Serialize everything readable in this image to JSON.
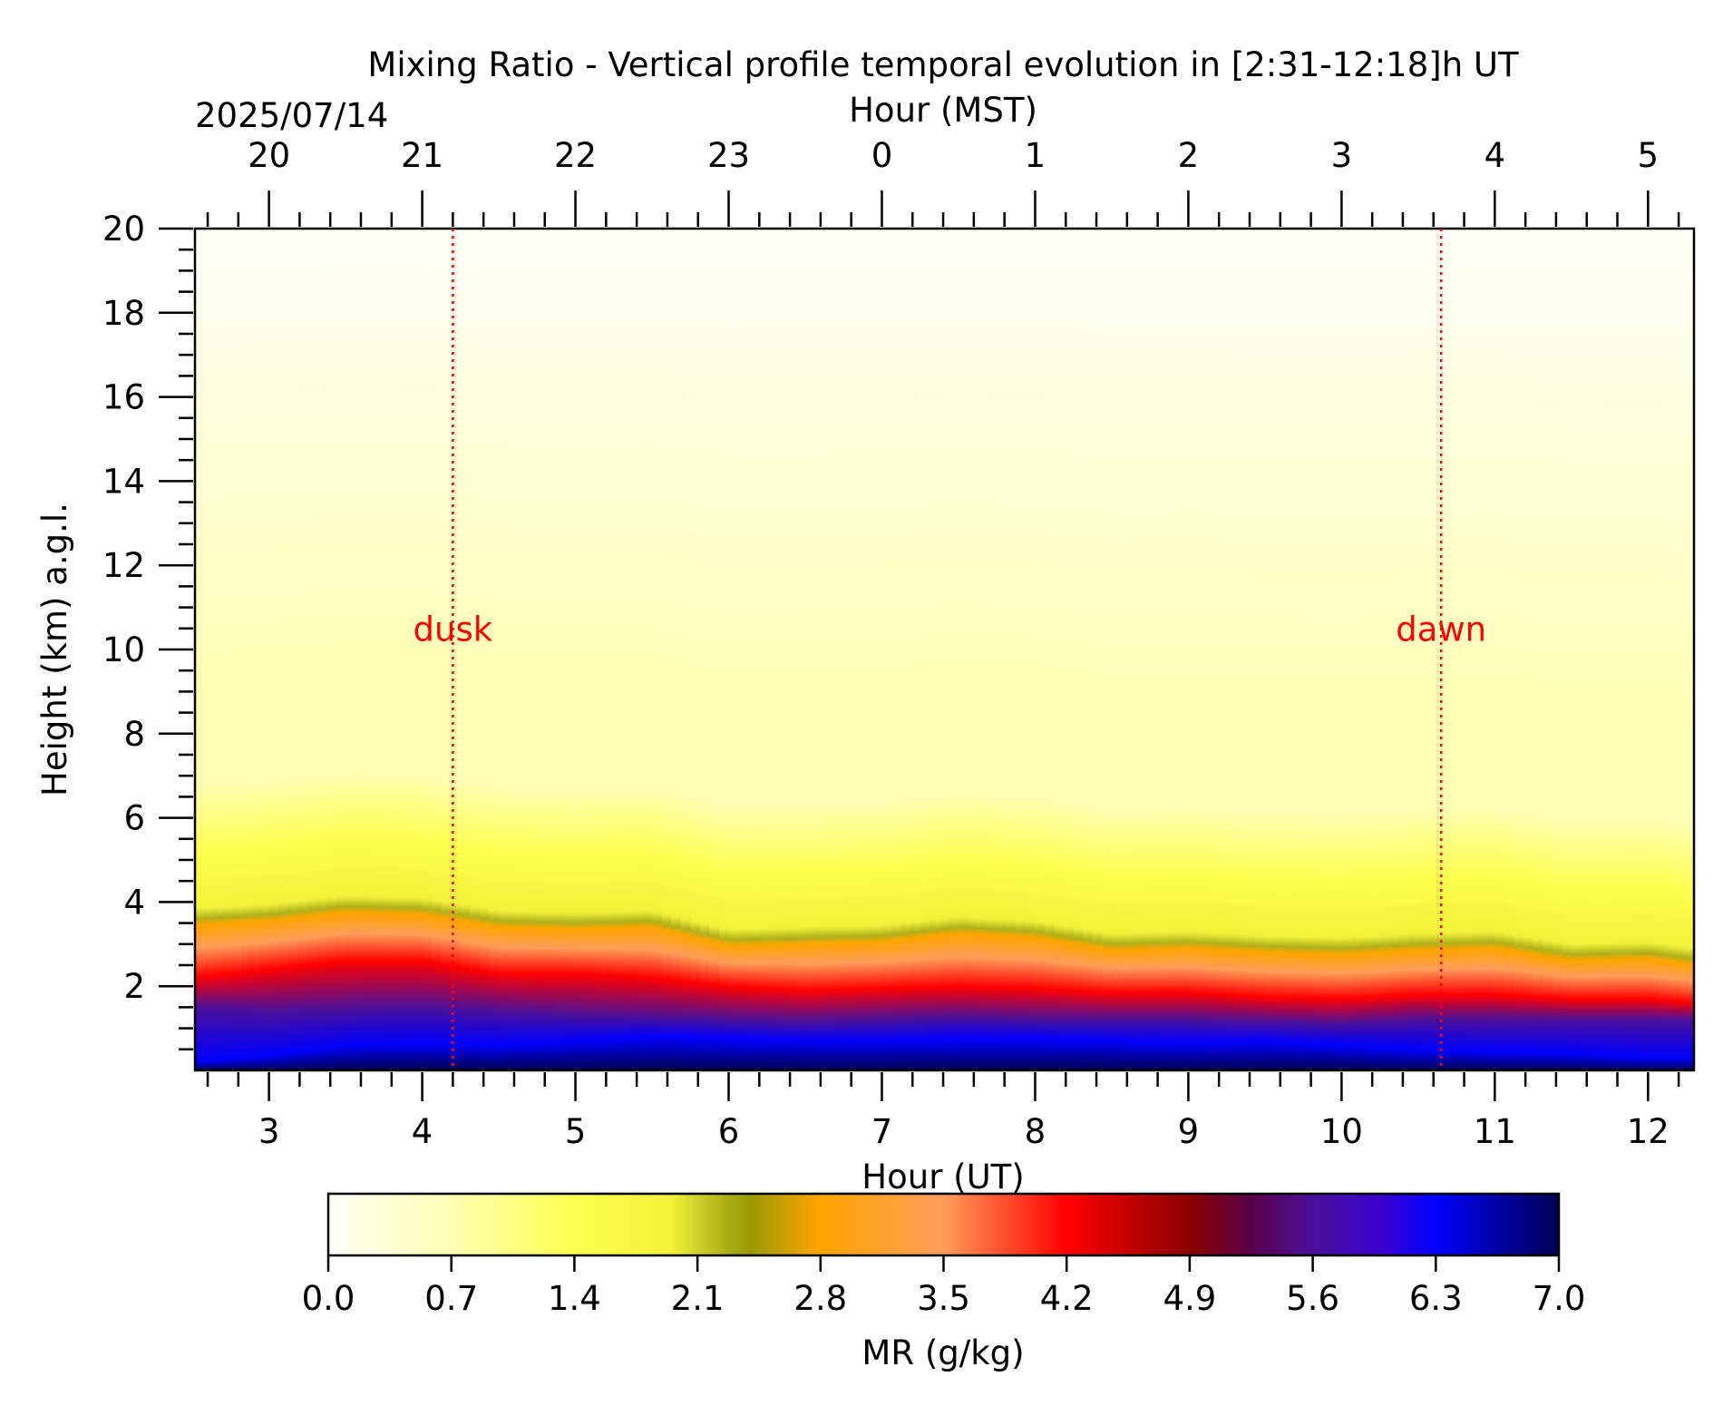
{
  "chart_data": {
    "type": "heatmap",
    "title": "Mixing Ratio - Vertical profile temporal evolution in [2:31-12:18]h UT",
    "date": "2025/07/14",
    "xlabel": "Hour (UT)",
    "x2label": "Hour (MST)",
    "ylabel": "Height (km) a.g.l.",
    "xlim": [
      2.517,
      12.3
    ],
    "ylim": [
      0,
      20
    ],
    "x_ticks": [
      "3",
      "4",
      "5",
      "6",
      "7",
      "8",
      "9",
      "10",
      "11",
      "12"
    ],
    "x_tick_values": [
      3,
      4,
      5,
      6,
      7,
      8,
      9,
      10,
      11,
      12
    ],
    "x2_ticks": [
      "20",
      "21",
      "22",
      "23",
      "0",
      "1",
      "2",
      "3",
      "4",
      "5"
    ],
    "x2_tick_positions_ut": [
      3,
      4,
      5,
      6,
      7,
      8,
      9,
      10,
      11,
      12
    ],
    "y_ticks": [
      "2",
      "4",
      "6",
      "8",
      "10",
      "12",
      "14",
      "16",
      "18",
      "20"
    ],
    "y_tick_values": [
      2,
      4,
      6,
      8,
      10,
      12,
      14,
      16,
      18,
      20
    ],
    "annotations": [
      {
        "label": "dusk",
        "x": 4.2,
        "y": 10.2,
        "color": "#ff0000"
      },
      {
        "label": "dawn",
        "x": 10.65,
        "y": 10.2,
        "color": "#ff0000"
      }
    ],
    "colorbar": {
      "label": "MR (g/kg)",
      "ticks": [
        "0.0",
        "0.7",
        "1.4",
        "2.1",
        "2.8",
        "3.5",
        "4.2",
        "4.9",
        "5.6",
        "6.3",
        "7.0"
      ],
      "range": [
        0,
        7.0
      ],
      "stops": [
        {
          "v": 0.0,
          "c": "#fffff8"
        },
        {
          "v": 0.7,
          "c": "#ffffb4"
        },
        {
          "v": 1.4,
          "c": "#ffff50"
        },
        {
          "v": 1.95,
          "c": "#f2f23a"
        },
        {
          "v": 2.25,
          "c": "#b0b01a"
        },
        {
          "v": 2.4,
          "c": "#9a9a00"
        },
        {
          "v": 2.8,
          "c": "#ffa500"
        },
        {
          "v": 3.5,
          "c": "#ff9c5a"
        },
        {
          "v": 4.2,
          "c": "#ff0000"
        },
        {
          "v": 4.9,
          "c": "#8b0000"
        },
        {
          "v": 5.25,
          "c": "#5a004a"
        },
        {
          "v": 5.6,
          "c": "#4a109a"
        },
        {
          "v": 6.0,
          "c": "#3a00d0"
        },
        {
          "v": 6.3,
          "c": "#0000ff"
        },
        {
          "v": 7.0,
          "c": "#000050"
        }
      ]
    },
    "series": [
      {
        "x": [
          2.517,
          3.0,
          3.5,
          4.0,
          4.5,
          5.0,
          5.5,
          6.0,
          6.5,
          7.0,
          7.5,
          8.0,
          8.5,
          9.0,
          9.5,
          10.0,
          10.5,
          11.0,
          11.5,
          12.0,
          12.3
        ],
        "top_2p1": [
          3.6,
          3.7,
          3.9,
          3.85,
          3.55,
          3.5,
          3.55,
          3.1,
          3.15,
          3.2,
          3.4,
          3.3,
          3.0,
          3.05,
          2.95,
          2.9,
          3.0,
          3.05,
          2.75,
          2.8,
          2.65
        ],
        "red_4p2": [
          2.2,
          2.4,
          2.6,
          2.6,
          2.3,
          2.3,
          2.2,
          2.0,
          1.9,
          1.95,
          2.0,
          1.95,
          1.85,
          1.85,
          1.75,
          1.7,
          1.8,
          1.8,
          1.7,
          1.7,
          1.6
        ],
        "purple_5p6": [
          1.5,
          1.4,
          1.45,
          1.5,
          1.4,
          1.3,
          1.25,
          1.2,
          1.15,
          1.2,
          1.25,
          1.2,
          1.2,
          1.2,
          1.15,
          1.1,
          1.2,
          1.2,
          1.2,
          1.2,
          1.2
        ],
        "blue_6p3": [
          0.2,
          0.35,
          0.6,
          0.65,
          0.6,
          0.7,
          0.8,
          0.75,
          0.7,
          0.7,
          0.75,
          0.75,
          0.7,
          0.65,
          0.7,
          0.6,
          0.5,
          0.45,
          0.4,
          0.3,
          0.3
        ]
      }
    ]
  }
}
